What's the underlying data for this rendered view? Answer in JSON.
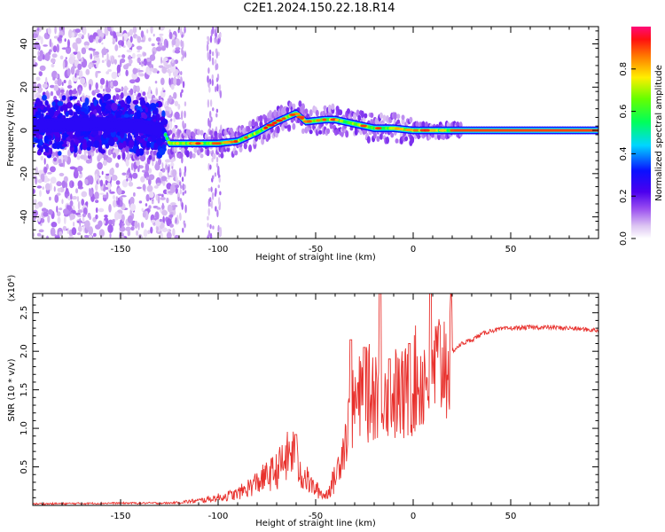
{
  "title": "C2E1.2024.150.22.18.R14",
  "colors": {
    "snr_line": "#e8302c",
    "axis": "#000000"
  },
  "chart_data": [
    {
      "name": "spectrogram",
      "type": "heatmap",
      "xlabel": "Height of straight line (km)",
      "ylabel": "Frequency (Hz)",
      "xlim": [
        -195,
        95
      ],
      "ylim": [
        -50,
        48
      ],
      "x_ticks": [
        -150,
        -100,
        -50,
        0,
        50
      ],
      "y_ticks": [
        -40,
        -20,
        0,
        20,
        40
      ],
      "colorbar": {
        "label": "Normalized spectral amplitude",
        "range": [
          0,
          1
        ],
        "ticks": [
          "0.0",
          "0.2",
          "0.4",
          "0.6",
          "0.8"
        ],
        "colormap": "rainbow"
      },
      "ridge": {
        "x": [
          -195,
          -160,
          -140,
          -128,
          -125,
          -110,
          -100,
          -90,
          -80,
          -70,
          -60,
          -55,
          -45,
          -40,
          -30,
          -20,
          -10,
          0,
          10,
          20,
          40,
          60,
          95
        ],
        "frequency": [
          2,
          3,
          2,
          0,
          -6,
          -6,
          -6,
          -5,
          -1,
          4,
          8,
          4,
          5,
          5,
          3,
          1,
          1,
          0,
          0,
          0,
          0,
          0,
          0
        ]
      }
    },
    {
      "name": "snr",
      "type": "line",
      "xlabel": "Height of straight line (km)",
      "ylabel": "SNR (10 * v/v)",
      "multiplier_label": "(x10⁴)",
      "xlim": [
        -195,
        95
      ],
      "ylim": [
        0,
        2.75
      ],
      "x_ticks": [
        -150,
        -100,
        -50,
        0,
        50
      ],
      "y_ticks": [
        "0.5",
        "1.0",
        "1.5",
        "2.0",
        "2.5"
      ],
      "envelope": {
        "x": [
          -195,
          -150,
          -125,
          -110,
          -100,
          -90,
          -80,
          -70,
          -62,
          -58,
          -52,
          -45,
          -40,
          -35,
          -30,
          -25,
          -20,
          -15,
          -10,
          -5,
          0,
          5,
          10,
          15,
          20,
          25,
          30,
          35,
          40,
          50,
          60,
          70,
          80,
          95
        ],
        "y": [
          0.02,
          0.03,
          0.03,
          0.06,
          0.1,
          0.15,
          0.3,
          0.45,
          0.7,
          0.45,
          0.25,
          0.12,
          0.35,
          0.85,
          1.3,
          1.4,
          1.5,
          1.6,
          1.45,
          1.4,
          1.6,
          1.65,
          1.75,
          1.85,
          2.0,
          2.1,
          2.15,
          2.22,
          2.27,
          2.3,
          2.31,
          2.31,
          2.3,
          2.27
        ]
      },
      "spikes": [
        {
          "x": -60,
          "y": 0.92
        },
        {
          "x": -32,
          "y": 2.15
        },
        {
          "x": -25,
          "y": 2.05
        },
        {
          "x": -17,
          "y": 2.75
        },
        {
          "x": -12,
          "y": 1.9
        },
        {
          "x": -2,
          "y": 2.1
        },
        {
          "x": 9,
          "y": 2.75
        }
      ]
    }
  ]
}
